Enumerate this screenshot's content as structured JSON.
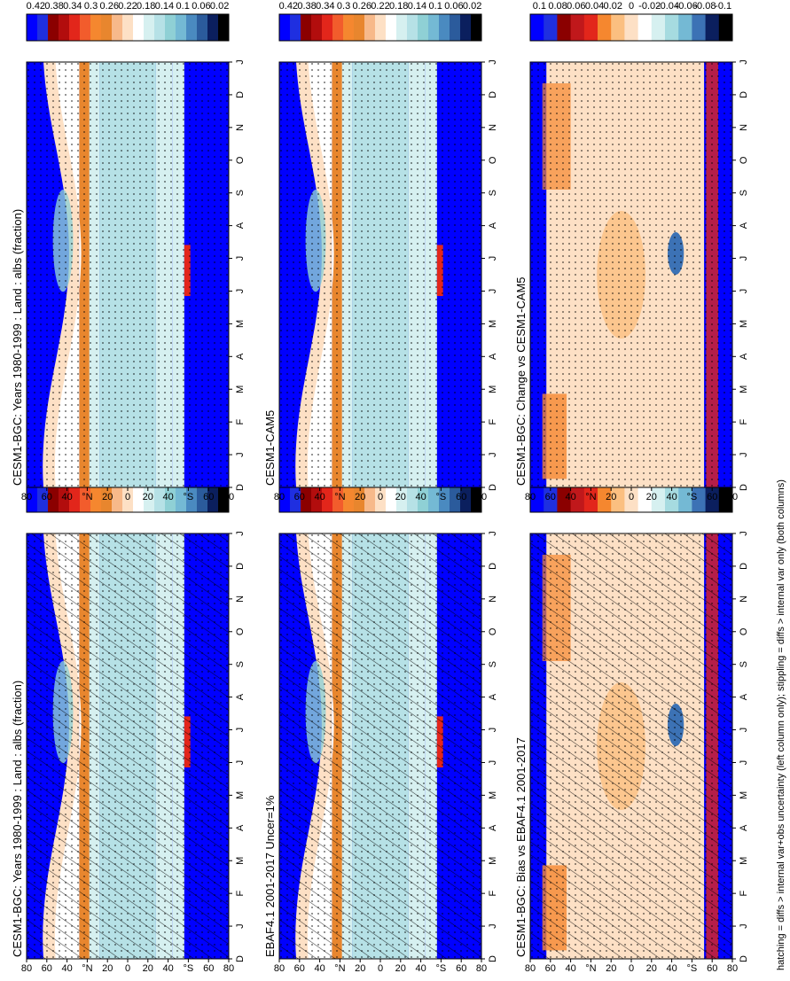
{
  "footnote": "hatching = diffs > internal var+obs uncertainty (left column only); stippling = diffs > internal var only (both columns)",
  "chart_data": [
    {
      "type": "heatmap",
      "panel_id": "model-left",
      "title": "CESM1-BGC: Years 1980-1999 : Land : albs (fraction)",
      "xlabel": "",
      "ylabel": "",
      "x_ticks": [
        "D",
        "J",
        "F",
        "M",
        "A",
        "M",
        "J",
        "J",
        "A",
        "S",
        "O",
        "N",
        "D",
        "J"
      ],
      "y_ticks": [
        "80",
        "60",
        "40",
        "°N",
        "20",
        "0",
        "20",
        "40",
        "°S",
        "60",
        "80"
      ],
      "colorbar_ticks": [
        "0.42",
        "0.38",
        "0.34",
        "0.3",
        "0.26",
        "0.22",
        "0.18",
        "0.14",
        "0.1",
        "0.06",
        "0.02"
      ],
      "kind": "abs",
      "hatching": true,
      "stippling": true
    },
    {
      "type": "heatmap",
      "panel_id": "model-right",
      "title": "CESM1-BGC: Years 1980-1999 : Land : albs (fraction)",
      "xlabel": "",
      "ylabel": "",
      "x_ticks": [
        "D",
        "J",
        "F",
        "M",
        "A",
        "M",
        "J",
        "J",
        "A",
        "S",
        "O",
        "N",
        "D",
        "J"
      ],
      "y_ticks": [
        "80",
        "60",
        "40",
        "°N",
        "20",
        "0",
        "20",
        "40",
        "°S",
        "60",
        "80"
      ],
      "colorbar_ticks": [
        "0.42",
        "0.38",
        "0.34",
        "0.3",
        "0.26",
        "0.22",
        "0.18",
        "0.14",
        "0.1",
        "0.06",
        "0.02"
      ],
      "kind": "abs",
      "hatching": false,
      "stippling": true
    },
    {
      "type": "heatmap",
      "panel_id": "ref-left",
      "title": "EBAF4.1 2001-2017 Uncer=1%",
      "xlabel": "",
      "ylabel": "",
      "x_ticks": [
        "D",
        "J",
        "F",
        "M",
        "A",
        "M",
        "J",
        "J",
        "A",
        "S",
        "O",
        "N",
        "D",
        "J"
      ],
      "y_ticks": [
        "80",
        "60",
        "40",
        "°N",
        "20",
        "0",
        "20",
        "40",
        "°S",
        "60",
        "80"
      ],
      "colorbar_ticks": [
        "0.42",
        "0.38",
        "0.34",
        "0.3",
        "0.26",
        "0.22",
        "0.18",
        "0.14",
        "0.1",
        "0.06",
        "0.02"
      ],
      "kind": "abs",
      "hatching": true,
      "stippling": true
    },
    {
      "type": "heatmap",
      "panel_id": "ref-right",
      "title": "CESM1-CAM5",
      "xlabel": "",
      "ylabel": "",
      "x_ticks": [
        "D",
        "J",
        "F",
        "M",
        "A",
        "M",
        "J",
        "J",
        "A",
        "S",
        "O",
        "N",
        "D",
        "J"
      ],
      "y_ticks": [
        "80",
        "60",
        "40",
        "°N",
        "20",
        "0",
        "20",
        "40",
        "°S",
        "60",
        "80"
      ],
      "colorbar_ticks": [
        "0.42",
        "0.38",
        "0.34",
        "0.3",
        "0.26",
        "0.22",
        "0.18",
        "0.14",
        "0.1",
        "0.06",
        "0.02"
      ],
      "kind": "abs",
      "hatching": false,
      "stippling": true
    },
    {
      "type": "heatmap",
      "panel_id": "diff-left",
      "title": "CESM1-BGC: Bias vs EBAF4.1 2001-2017",
      "xlabel": "",
      "ylabel": "",
      "x_ticks": [
        "D",
        "J",
        "F",
        "M",
        "A",
        "M",
        "J",
        "J",
        "A",
        "S",
        "O",
        "N",
        "D",
        "J"
      ],
      "y_ticks": [
        "80",
        "60",
        "40",
        "°N",
        "20",
        "0",
        "20",
        "40",
        "°S",
        "60",
        "80"
      ],
      "colorbar_ticks": [
        "0.1",
        "0.08",
        "0.06",
        "0.04",
        "0.02",
        "0",
        "-0.02",
        "-0.04",
        "-0.06",
        "-0.08",
        "-0.1"
      ],
      "kind": "diff",
      "hatching": true,
      "stippling": true
    },
    {
      "type": "heatmap",
      "panel_id": "diff-right",
      "title": "CESM1-BGC: Change vs CESM1-CAM5",
      "xlabel": "",
      "ylabel": "",
      "x_ticks": [
        "D",
        "J",
        "F",
        "M",
        "A",
        "M",
        "J",
        "J",
        "A",
        "S",
        "O",
        "N",
        "D",
        "J"
      ],
      "y_ticks": [
        "80",
        "60",
        "40",
        "°N",
        "20",
        "0",
        "20",
        "40",
        "°S",
        "60",
        "80"
      ],
      "colorbar_ticks": [
        "0.1",
        "0.08",
        "0.06",
        "0.04",
        "0.02",
        "0",
        "-0.02",
        "-0.04",
        "-0.06",
        "-0.08",
        "-0.1"
      ],
      "kind": "diff",
      "hatching": false,
      "stippling": true
    }
  ],
  "colors": {
    "abs_scale": [
      "#0000ff",
      "#1f2fe0",
      "#8b0000",
      "#b20d0d",
      "#e2261b",
      "#f25c2c",
      "#f5872f",
      "#e8862e",
      "#f7b98a",
      "#fde0c5",
      "#ffffff",
      "#d6f0f0",
      "#b6e1e6",
      "#8fd0d5",
      "#74b9d4",
      "#4a8ac0",
      "#2b5b9c",
      "#0b1f5e",
      "#000000"
    ],
    "diff_scale": [
      "#0000ff",
      "#1f2fe0",
      "#8b0000",
      "#c0181b",
      "#e2261b",
      "#f5872f",
      "#fbbf80",
      "#fde0c5",
      "#ffffff",
      "#d6f0f0",
      "#a6dbe0",
      "#74b9d4",
      "#3c72b5",
      "#0b1f5e",
      "#000000"
    ]
  }
}
